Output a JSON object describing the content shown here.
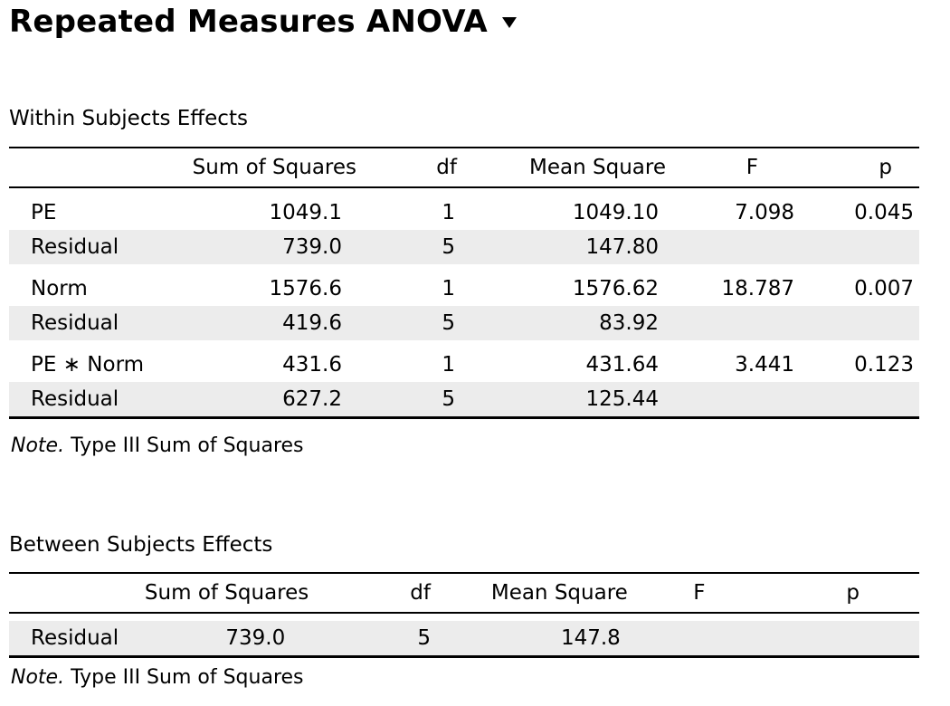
{
  "header": {
    "title": "Repeated Measures ANOVA"
  },
  "within": {
    "caption": "Within Subjects Effects",
    "columns": [
      "Sum of Squares",
      "df",
      "Mean Square",
      "F",
      "p"
    ],
    "rows": [
      {
        "case": "PE",
        "ss": "1049.1",
        "df": "1",
        "ms": "1049.10",
        "f": "7.098",
        "p": "0.045"
      },
      {
        "case": "Residual",
        "ss": "739.0",
        "df": "5",
        "ms": "147.80",
        "f": "",
        "p": ""
      },
      {
        "case": "Norm",
        "ss": "1576.6",
        "df": "1",
        "ms": "1576.62",
        "f": "18.787",
        "p": "0.007"
      },
      {
        "case": "Residual",
        "ss": "419.6",
        "df": "5",
        "ms": "83.92",
        "f": "",
        "p": ""
      },
      {
        "case": "PE ∗ Norm",
        "ss": "431.6",
        "df": "1",
        "ms": "431.64",
        "f": "3.441",
        "p": "0.123"
      },
      {
        "case": "Residual",
        "ss": "627.2",
        "df": "5",
        "ms": "125.44",
        "f": "",
        "p": ""
      }
    ],
    "note_label": "Note.",
    "note_text": " Type III Sum of Squares"
  },
  "between": {
    "caption": "Between Subjects Effects",
    "columns": [
      "Sum of Squares",
      "df",
      "Mean Square",
      "F",
      "p"
    ],
    "rows": [
      {
        "case": "Residual",
        "ss": "739.0",
        "df": "5",
        "ms": "147.8",
        "f": "",
        "p": ""
      }
    ],
    "note_label": "Note.",
    "note_text": " Type III Sum of Squares"
  }
}
